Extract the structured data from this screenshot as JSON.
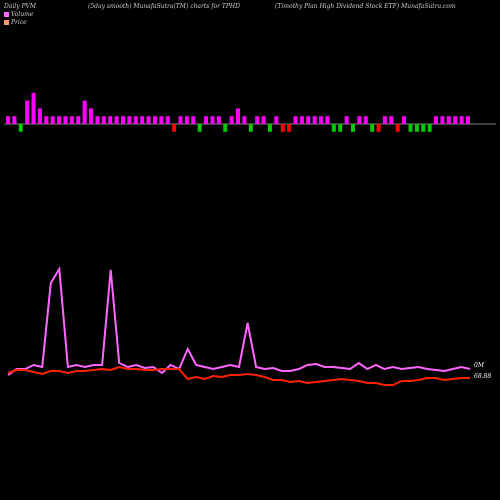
{
  "header": {
    "left": "Daily PVM",
    "mid": "(5day smooth) MunafaSutra(TM) charts for TPHD",
    "right": "(Timothy Plan High Dividend Stock ETF) MunafaSutra.com"
  },
  "legend": [
    {
      "label": "Volume",
      "color": "#ff66ff"
    },
    {
      "label": "Price",
      "color": "#ff9966"
    }
  ],
  "colors": {
    "up": "#ff00ff",
    "down_green": "#00cc00",
    "down_red": "#ff0000",
    "volume_line": "#ff66ff",
    "price_line": "#ff2200",
    "baseline": "#ffffff"
  },
  "chart_data": {
    "type": "line",
    "volume_label": "0M",
    "price_label": "68.88",
    "bars": [
      {
        "value": 1,
        "color": "up"
      },
      {
        "value": 1,
        "color": "up"
      },
      {
        "value": -1,
        "color": "down_green"
      },
      {
        "value": 3,
        "color": "up"
      },
      {
        "value": 4,
        "color": "up"
      },
      {
        "value": 2,
        "color": "up"
      },
      {
        "value": 1,
        "color": "up"
      },
      {
        "value": 1,
        "color": "up"
      },
      {
        "value": 1,
        "color": "up"
      },
      {
        "value": 1,
        "color": "up"
      },
      {
        "value": 1,
        "color": "up"
      },
      {
        "value": 1,
        "color": "up"
      },
      {
        "value": 3,
        "color": "up"
      },
      {
        "value": 2,
        "color": "up"
      },
      {
        "value": 1,
        "color": "up"
      },
      {
        "value": 1,
        "color": "up"
      },
      {
        "value": 1,
        "color": "up"
      },
      {
        "value": 1,
        "color": "up"
      },
      {
        "value": 1,
        "color": "up"
      },
      {
        "value": 1,
        "color": "up"
      },
      {
        "value": 1,
        "color": "up"
      },
      {
        "value": 1,
        "color": "up"
      },
      {
        "value": 1,
        "color": "up"
      },
      {
        "value": 1,
        "color": "up"
      },
      {
        "value": 1,
        "color": "up"
      },
      {
        "value": 1,
        "color": "up"
      },
      {
        "value": -1,
        "color": "down_red"
      },
      {
        "value": 1,
        "color": "up"
      },
      {
        "value": 1,
        "color": "up"
      },
      {
        "value": 1,
        "color": "up"
      },
      {
        "value": -1,
        "color": "down_green"
      },
      {
        "value": 1,
        "color": "up"
      },
      {
        "value": 1,
        "color": "up"
      },
      {
        "value": 1,
        "color": "up"
      },
      {
        "value": -1,
        "color": "down_green"
      },
      {
        "value": 1,
        "color": "up"
      },
      {
        "value": 2,
        "color": "up"
      },
      {
        "value": 1,
        "color": "up"
      },
      {
        "value": -1,
        "color": "down_green"
      },
      {
        "value": 1,
        "color": "up"
      },
      {
        "value": 1,
        "color": "up"
      },
      {
        "value": -1,
        "color": "down_green"
      },
      {
        "value": 1,
        "color": "up"
      },
      {
        "value": -1,
        "color": "down_red"
      },
      {
        "value": -1,
        "color": "down_red"
      },
      {
        "value": 1,
        "color": "up"
      },
      {
        "value": 1,
        "color": "up"
      },
      {
        "value": 1,
        "color": "up"
      },
      {
        "value": 1,
        "color": "up"
      },
      {
        "value": 1,
        "color": "up"
      },
      {
        "value": 1,
        "color": "up"
      },
      {
        "value": -1,
        "color": "down_green"
      },
      {
        "value": -1,
        "color": "down_green"
      },
      {
        "value": 1,
        "color": "up"
      },
      {
        "value": -1,
        "color": "down_green"
      },
      {
        "value": 1,
        "color": "up"
      },
      {
        "value": 1,
        "color": "up"
      },
      {
        "value": -1,
        "color": "down_green"
      },
      {
        "value": -1,
        "color": "down_red"
      },
      {
        "value": 1,
        "color": "up"
      },
      {
        "value": 1,
        "color": "up"
      },
      {
        "value": -1,
        "color": "down_red"
      },
      {
        "value": 1,
        "color": "up"
      },
      {
        "value": -1,
        "color": "down_green"
      },
      {
        "value": -1,
        "color": "down_green"
      },
      {
        "value": -1,
        "color": "down_green"
      },
      {
        "value": -1,
        "color": "down_green"
      },
      {
        "value": 1,
        "color": "up"
      },
      {
        "value": 1,
        "color": "up"
      },
      {
        "value": 1,
        "color": "up"
      },
      {
        "value": 1,
        "color": "up"
      },
      {
        "value": 1,
        "color": "up"
      },
      {
        "value": 1,
        "color": "up"
      }
    ],
    "volume_line": [
      50,
      56,
      56,
      60,
      58,
      142,
      156,
      58,
      60,
      58,
      60,
      60,
      155,
      62,
      58,
      60,
      57,
      58,
      52,
      60,
      56,
      76,
      60,
      58,
      56,
      58,
      60,
      58,
      102,
      58,
      56,
      57,
      54,
      54,
      56,
      60,
      61,
      58,
      58,
      57,
      56,
      62,
      56,
      60,
      56,
      58,
      56,
      57,
      58,
      56,
      55,
      54,
      56,
      58,
      56
    ],
    "price_line": [
      52,
      55,
      55,
      53,
      51,
      54,
      54,
      52,
      54,
      54,
      55,
      56,
      55,
      58,
      56,
      56,
      55,
      55,
      56,
      56,
      56,
      46,
      48,
      46,
      49,
      48,
      50,
      50,
      51,
      50,
      48,
      45,
      45,
      43,
      44,
      42,
      43,
      44,
      45,
      46,
      45,
      44,
      42,
      42,
      40,
      40,
      44,
      44,
      45,
      47,
      47,
      45,
      46,
      47,
      47
    ]
  }
}
